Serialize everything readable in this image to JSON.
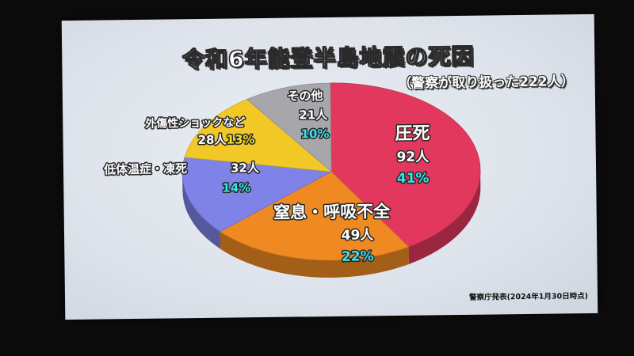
{
  "chart_data": {
    "type": "pie",
    "title": "令和6年能登半島地震の死因",
    "subtitle": "（警察が取り扱った222人）",
    "source": "警察庁発表(2024年1月30日時点)",
    "total": 222,
    "slices": [
      {
        "label": "圧死",
        "count_text": "92人",
        "pct_text": "41%",
        "value": 92,
        "color": "#e2385e"
      },
      {
        "label": "窒息・呼吸不全",
        "count_text": "49人",
        "pct_text": "22%",
        "value": 49,
        "color": "#ef8a22"
      },
      {
        "label": "低体温症・凍死",
        "count_text": "32人",
        "pct_text": "14%",
        "value": 32,
        "color": "#7f82e6"
      },
      {
        "label": "外傷性ショックなど",
        "count_text": "28人",
        "pct_text": "13%",
        "value": 28,
        "color": "#f2c826"
      },
      {
        "label": "その他",
        "count_text": "21人",
        "pct_text": "10%",
        "value": 21,
        "color": "#a7a7ab"
      }
    ]
  }
}
